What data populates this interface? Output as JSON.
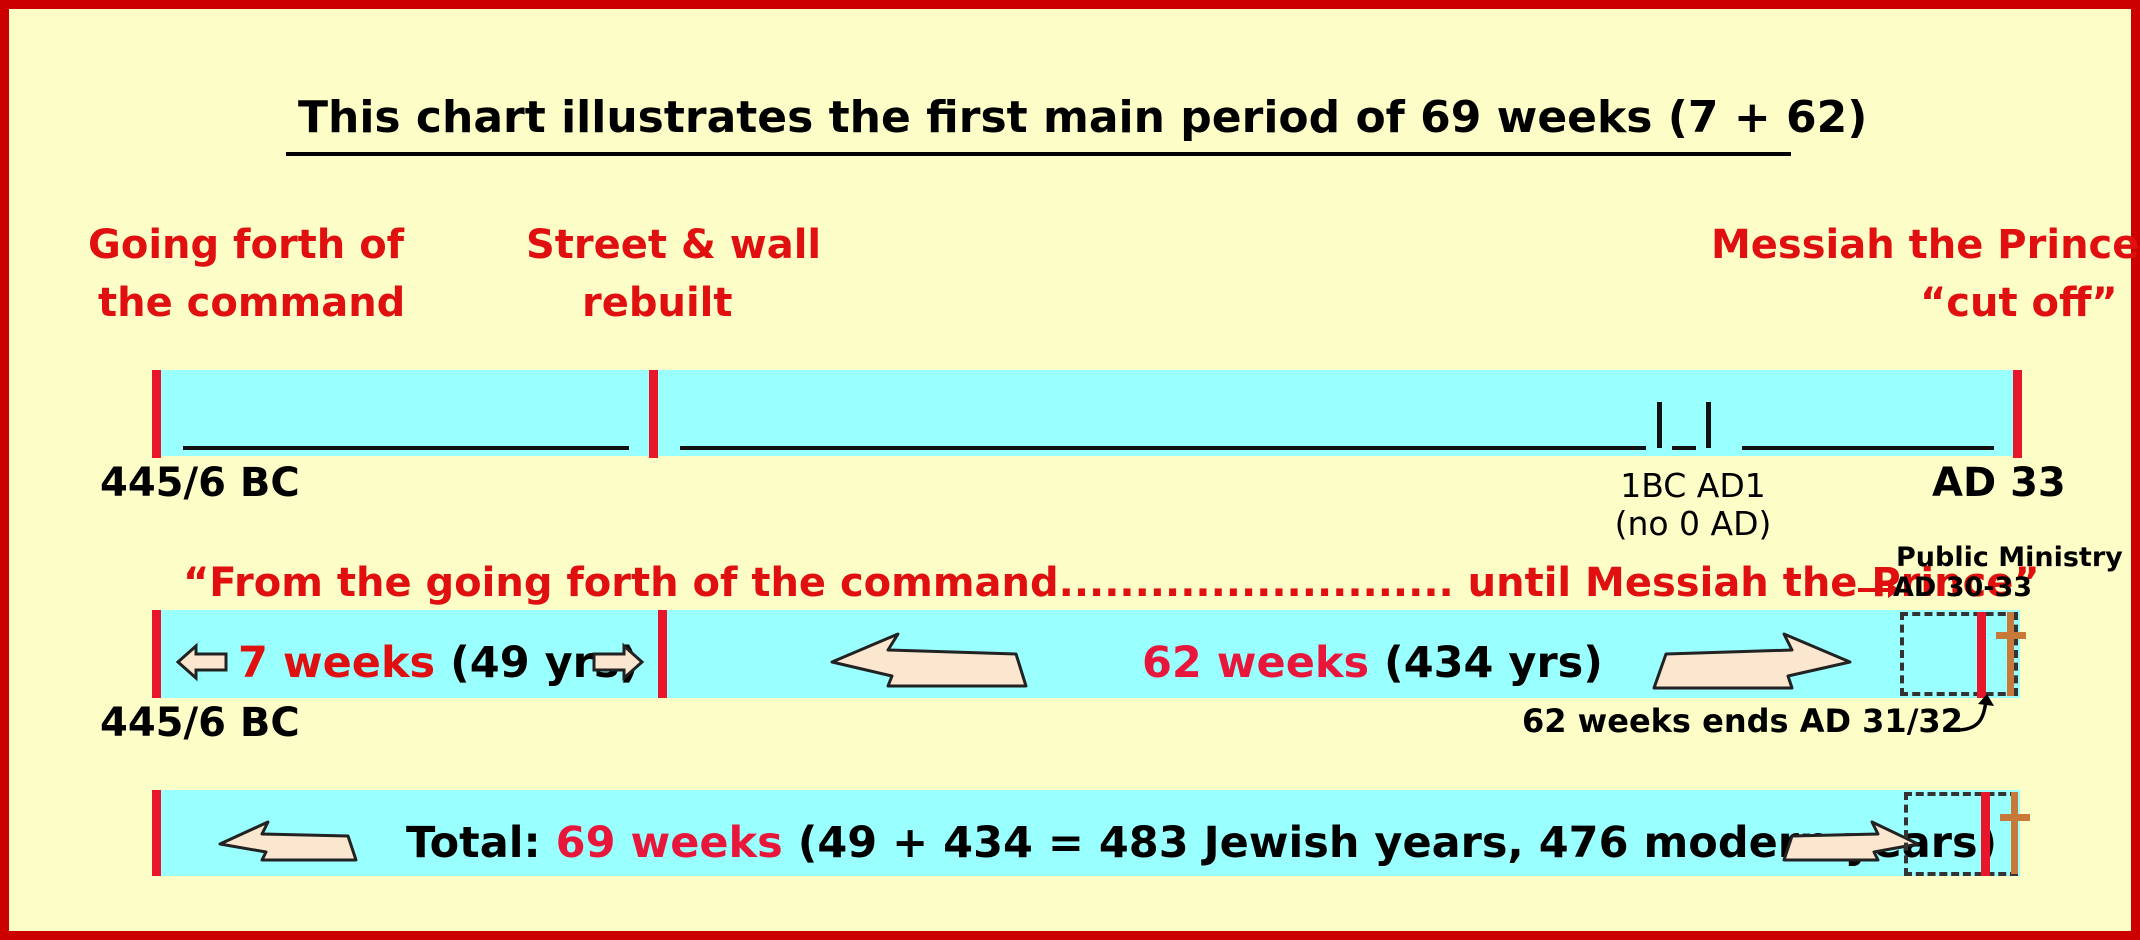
{
  "title": "This chart illustrates the first main period of 69 weeks (7 + 62)",
  "top_labels": {
    "command_l1": "Going forth of",
    "command_l2": "the command",
    "street_l1": "Street & wall",
    "street_l2": "rebuilt",
    "messiah_l1": "Messiah the Prince",
    "messiah_l2": "“cut off”"
  },
  "timeline": {
    "start": "445/6 BC",
    "bc_ad_l1": "1BC  AD1",
    "bc_ad_l2": "(no 0 AD)",
    "end": "AD 33"
  },
  "quote": "“From the going forth of the command.......................... until Messiah the Prince”",
  "public_ministry_l1": "Public Ministry",
  "public_ministry_l2": "AD 30-33",
  "band1": {
    "seven_num": "7  weeks",
    "seven_yrs": "(49 yrs)",
    "sixtytwo_num": "62 weeks",
    "sixtytwo_yrs": "(434 yrs)",
    "start": "445/6 BC",
    "ends_note": "62 weeks ends AD 31/32"
  },
  "band2": {
    "total_prefix": "Total:",
    "total_num": "69 weeks",
    "total_rest": "(49 + 434 = 483 Jewish years, 476 modern years)"
  },
  "colors": {
    "frame": "#cc0000",
    "background": "#fdfdc8",
    "band": "#99ffff",
    "label_red": "#e01010",
    "tick_red": "#e8162a",
    "cross": "#c87838",
    "arrow_fill": "#fbe7d0"
  },
  "icons": [
    "left-arrow-icon",
    "right-arrow-icon",
    "cross-icon",
    "curved-arrow-icon"
  ]
}
